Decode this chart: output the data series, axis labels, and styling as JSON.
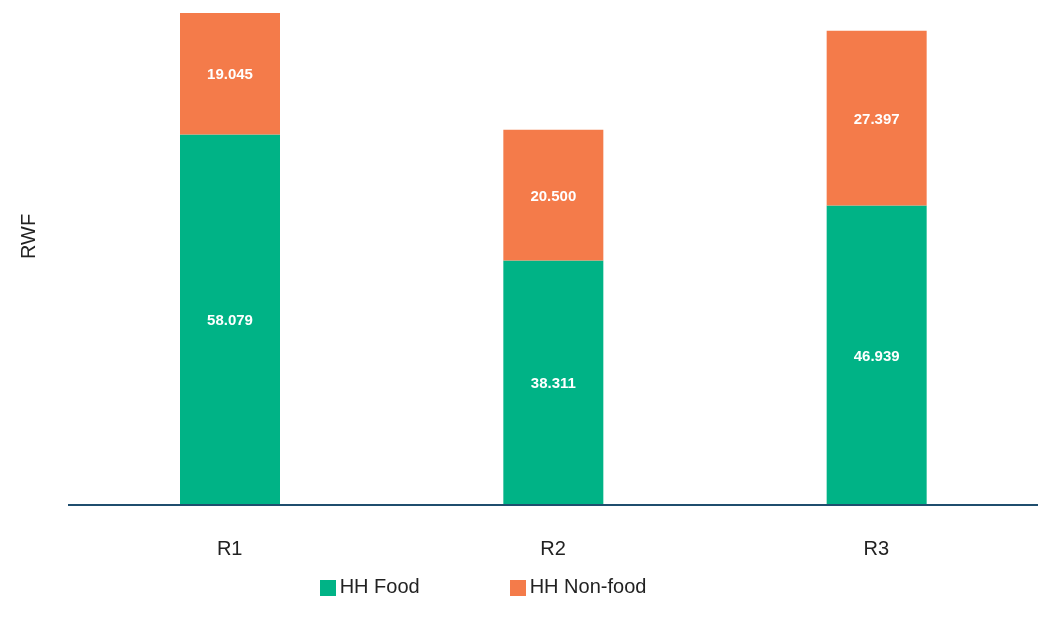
{
  "chart_data": {
    "type": "bar",
    "stacked": true,
    "ylabel": "RWF",
    "categories": [
      "R1",
      "R2",
      "R3"
    ],
    "series": [
      {
        "name": "HH Food",
        "color": "#00b386",
        "values": [
          58.079,
          38.311,
          46.939
        ],
        "value_labels": [
          "58.079",
          "38.311",
          "46.939"
        ]
      },
      {
        "name": "HH Non-food",
        "color": "#f47b4a",
        "values": [
          19.045,
          20.5,
          27.397
        ],
        "value_labels": [
          "19.045",
          "20.500",
          "27.397"
        ]
      }
    ],
    "legend": "bottom",
    "grid": false
  }
}
